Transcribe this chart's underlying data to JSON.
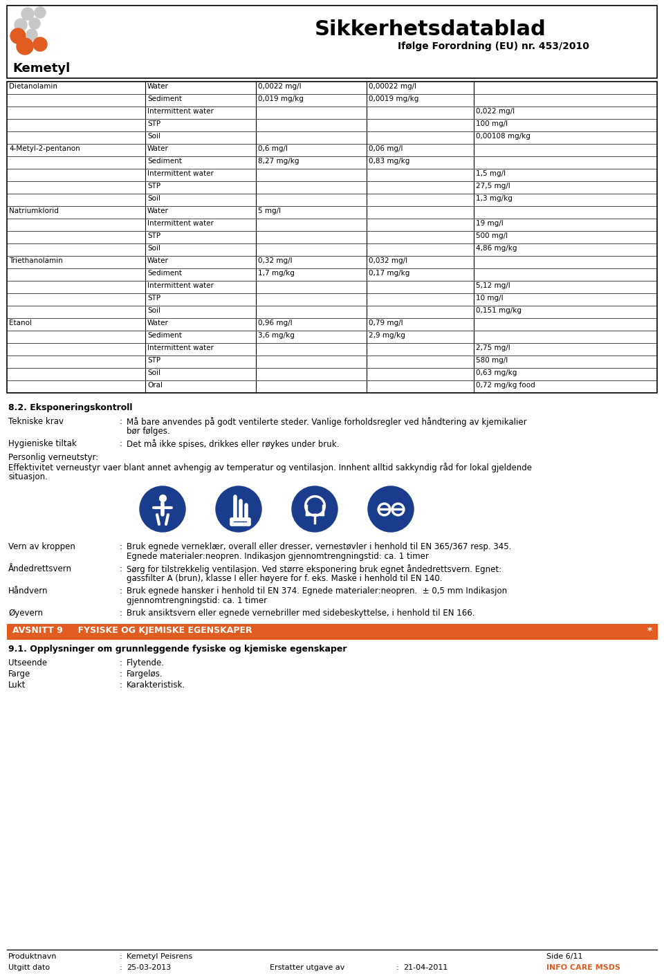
{
  "title": "Sikkerhetsdatablad",
  "subtitle": "Ifølge Forordning (EU) nr. 453/2010",
  "company": "Kemetyl",
  "bg_color": "#ffffff",
  "table_data": [
    {
      "chemical": "Dietanolamin",
      "medium": "Water",
      "col3": "0,0022 mg/l",
      "col4": "0,00022 mg/l",
      "col5": ""
    },
    {
      "chemical": "",
      "medium": "Sediment",
      "col3": "0,019 mg/kg",
      "col4": "0,0019 mg/kg",
      "col5": ""
    },
    {
      "chemical": "",
      "medium": "Intermittent water",
      "col3": "",
      "col4": "",
      "col5": "0,022 mg/l"
    },
    {
      "chemical": "",
      "medium": "STP",
      "col3": "",
      "col4": "",
      "col5": "100 mg/l"
    },
    {
      "chemical": "",
      "medium": "Soil",
      "col3": "",
      "col4": "",
      "col5": "0,00108 mg/kg"
    },
    {
      "chemical": "4-Metyl-2-pentanon",
      "medium": "Water",
      "col3": "0,6 mg/l",
      "col4": "0,06 mg/l",
      "col5": ""
    },
    {
      "chemical": "",
      "medium": "Sediment",
      "col3": "8,27 mg/kg",
      "col4": "0,83 mg/kg",
      "col5": ""
    },
    {
      "chemical": "",
      "medium": "Intermittent water",
      "col3": "",
      "col4": "",
      "col5": "1,5 mg/l"
    },
    {
      "chemical": "",
      "medium": "STP",
      "col3": "",
      "col4": "",
      "col5": "27,5 mg/l"
    },
    {
      "chemical": "",
      "medium": "Soil",
      "col3": "",
      "col4": "",
      "col5": "1,3 mg/kg"
    },
    {
      "chemical": "Natriumklorid",
      "medium": "Water",
      "col3": "5 mg/l",
      "col4": "",
      "col5": ""
    },
    {
      "chemical": "",
      "medium": "Intermittent water",
      "col3": "",
      "col4": "",
      "col5": "19 mg/l"
    },
    {
      "chemical": "",
      "medium": "STP",
      "col3": "",
      "col4": "",
      "col5": "500 mg/l"
    },
    {
      "chemical": "",
      "medium": "Soil",
      "col3": "",
      "col4": "",
      "col5": "4,86 mg/kg"
    },
    {
      "chemical": "Triethanolamin",
      "medium": "Water",
      "col3": "0,32 mg/l",
      "col4": "0,032 mg/l",
      "col5": ""
    },
    {
      "chemical": "",
      "medium": "Sediment",
      "col3": "1,7 mg/kg",
      "col4": "0,17 mg/kg",
      "col5": ""
    },
    {
      "chemical": "",
      "medium": "Intermittent water",
      "col3": "",
      "col4": "",
      "col5": "5,12 mg/l"
    },
    {
      "chemical": "",
      "medium": "STP",
      "col3": "",
      "col4": "",
      "col5": "10 mg/l"
    },
    {
      "chemical": "",
      "medium": "Soil",
      "col3": "",
      "col4": "",
      "col5": "0,151 mg/kg"
    },
    {
      "chemical": "Etanol",
      "medium": "Water",
      "col3": "0,96 mg/l",
      "col4": "0,79 mg/l",
      "col5": ""
    },
    {
      "chemical": "",
      "medium": "Sediment",
      "col3": "3,6 mg/kg",
      "col4": "2,9 mg/kg",
      "col5": ""
    },
    {
      "chemical": "",
      "medium": "Intermittent water",
      "col3": "",
      "col4": "",
      "col5": "2,75 mg/l"
    },
    {
      "chemical": "",
      "medium": "STP",
      "col3": "",
      "col4": "",
      "col5": "580 mg/l"
    },
    {
      "chemical": "",
      "medium": "Soil",
      "col3": "",
      "col4": "",
      "col5": "0,63 mg/kg"
    },
    {
      "chemical": "",
      "medium": "Oral",
      "col3": "",
      "col4": "",
      "col5": "0,72 mg/kg food"
    }
  ],
  "section82_title": "8.2. Eksponeringskontroll",
  "tekniske_krav_label": "Tekniske krav",
  "tekniske_krav_line1": "Må bare anvendes på godt ventilerte steder. Vanlige forholdsregler ved håndtering av kjemikalier",
  "tekniske_krav_line2": "bør følges.",
  "hygieniske_label": "Hygieniske tiltak",
  "hygieniske_text": "Det må ikke spises, drikkes eller røykes under bruk.",
  "personlig_label": "Personlig verneutstyr:",
  "personlig_line1": "Effektivitet verneustyr vaer blant annet avhengig av temperatur og ventilasjon. Innhent alltid sakkyndig råd for lokal gjeldende",
  "personlig_line2": "situasjon.",
  "vern_label": "Vern av kroppen",
  "vern_line1": "Bruk egnede verneklær, overall eller dresser, vernestøvler i henhold til EN 365/367 resp. 345.",
  "vern_line2": "Egnede materialer:neopren. Indikasjon gjennomtrengningstid: ca. 1 timer",
  "aandedrett_label": "Åndedrettsvern",
  "aandedrett_line1": "Sørg for tilstrekkelig ventilasjon. Ved større eksponering bruk egnet åndedrettsvern. Egnet:",
  "aandedrett_line2": "gassfilter A (brun), klasse I eller høyere for f. eks. Maske i henhold til EN 140.",
  "haandvern_label": "Håndvern",
  "haandvern_line1": "Bruk egnede hansker i henhold til EN 374. Egnede materialer:neopren.  ± 0,5 mm Indikasjon",
  "haandvern_line2": "gjennomtrengningstid: ca. 1 timer",
  "oeyevern_label": "Øyevern",
  "oeyevern_text": "Bruk ansiktsvern eller egnede vernebriller med sidebeskyttelse, i henhold til EN 166.",
  "avsnitt9_text": "AVSNITT 9     FYSISKE OG KJEMISKE EGENSKAPER",
  "section91_title": "9.1. Opplysninger om grunnleggende fysiske og kjemiske egenskaper",
  "utseende_label": "Utseende",
  "utseende_text": "Flytende.",
  "farge_label": "Farge",
  "farge_text": "Fargeløs.",
  "lukt_label": "Lukt",
  "lukt_text": "Karakteristisk.",
  "footer_produktnavn_label": "Produktnavn",
  "footer_produktnavn_value": "Kemetyl Peisrens",
  "footer_utgitt_label": "Utgitt dato",
  "footer_utgitt_value": "25-03-2013",
  "footer_erstatter_label": "Erstatter utgave av",
  "footer_erstatter_value": "21-04-2011",
  "footer_side": "Side 6/11",
  "footer_info": "INFO CARE MSDS",
  "orange_color": "#e05c20",
  "blue_color": "#1a3c8c",
  "dark_text": "#000000"
}
